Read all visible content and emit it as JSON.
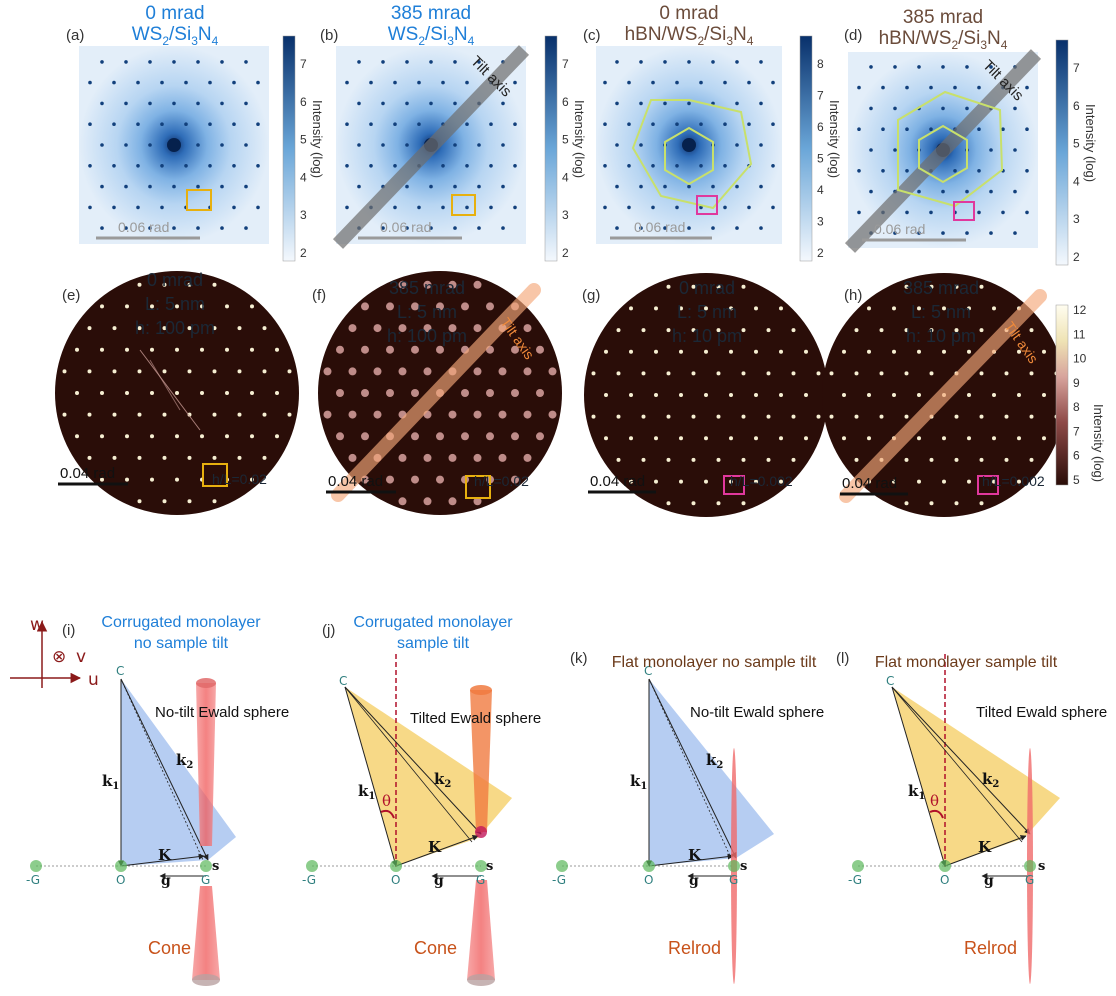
{
  "panels_top": [
    {
      "letter": "(a)",
      "tilt": "0 mrad",
      "sample_parts": [
        "WS",
        "2",
        "/Si",
        "3",
        "N",
        "4"
      ],
      "scale": "0.06 rad",
      "colorbar_label": "Intensity (log)",
      "ticks": [
        "7",
        "6",
        "5",
        "4",
        "3",
        "2"
      ],
      "title_color": "#1f7fd8"
    },
    {
      "letter": "(b)",
      "tilt": "385 mrad",
      "sample_parts": [
        "WS",
        "2",
        "/Si",
        "3",
        "N",
        "4"
      ],
      "scale": "0.06 rad",
      "tilt_axis": "Tilt axis",
      "colorbar_label": "Intensity (log)",
      "ticks": [
        "7",
        "6",
        "5",
        "4",
        "3",
        "2"
      ],
      "title_color": "#1f7fd8"
    },
    {
      "letter": "(c)",
      "tilt": "0 mrad",
      "sample_parts": [
        "hBN/WS",
        "2",
        "/Si",
        "3",
        "N",
        "4"
      ],
      "scale": "0.06 rad",
      "colorbar_label": "Intensity (log)",
      "ticks": [
        "8",
        "7",
        "6",
        "5",
        "4",
        "3",
        "2"
      ],
      "title_color": "#6b4c3b"
    },
    {
      "letter": "(d)",
      "tilt": "385 mrad",
      "sample_parts": [
        "hBN/WS",
        "2",
        "/Si",
        "3",
        "N",
        "4"
      ],
      "scale": "0.06 rad",
      "tilt_axis": "Tilt axis",
      "colorbar_label": "Intensity (log)",
      "ticks": [
        "7",
        "6",
        "5",
        "4",
        "3",
        "2"
      ],
      "title_color": "#6b4c3b"
    }
  ],
  "panels_sim": [
    {
      "letter": "(e)",
      "tilt": "0 mrad",
      "L": "L: 5 nm",
      "h": "h: 100 pm",
      "ratio": "h/L=0.02",
      "scale": "0.04 rad"
    },
    {
      "letter": "(f)",
      "tilt": "385 mrad",
      "L": "L: 5 nm",
      "h": "h: 100 pm",
      "ratio": "h/L=0.02",
      "scale": "0.04 rad",
      "tilt_axis": "Tilt axis"
    },
    {
      "letter": "(g)",
      "tilt": "0 mrad",
      "L": "L: 5 nm",
      "h": "h: 10 pm",
      "ratio": "h/L=0.002",
      "scale": "0.04 rad"
    },
    {
      "letter": "(h)",
      "tilt": "385 mrad",
      "L": "L: 5 nm",
      "h": "h: 10 pm",
      "ratio": "h/L=0.002",
      "scale": "0.04 rad",
      "tilt_axis": "Tilt axis"
    }
  ],
  "sim_colorbar": {
    "label": "Intensity (log)",
    "ticks": [
      "12",
      "11",
      "10",
      "9",
      "8",
      "7",
      "6",
      "5"
    ]
  },
  "panels_diag": [
    {
      "letter": "(i)",
      "title_lines": [
        "Corrugated monolayer",
        "no sample tilt"
      ],
      "title_color": "#1f7fd8",
      "sphere": "No-tilt Ewald sphere",
      "shape": "Cone"
    },
    {
      "letter": "(j)",
      "title_lines": [
        "Corrugated monolayer",
        "sample tilt"
      ],
      "title_color": "#1f7fd8",
      "sphere": "Tilted Ewald sphere",
      "shape": "Cone"
    },
    {
      "letter": "(k)",
      "title_lines": [
        "Flat monolayer no sample tilt"
      ],
      "title_color": "#6b3a1a",
      "sphere": "No-tilt Ewald sphere",
      "shape": "Relrod"
    },
    {
      "letter": "(l)",
      "title_lines": [
        "Flat monolayer sample tilt"
      ],
      "title_color": "#6b3a1a",
      "sphere": "Tilted Ewald sphere",
      "shape": "Relrod"
    }
  ],
  "diag_labels": {
    "C": "C",
    "k1": "k",
    "k1_sub": "1",
    "k2": "k",
    "k2_sub": "2",
    "K": "K",
    "s": "s",
    "g": "g",
    "O": "O",
    "G": "G",
    "negG": "-G",
    "theta": "θ"
  },
  "axes": {
    "w": "w",
    "v": "v",
    "u": "u",
    "v_symbol": "⊗"
  },
  "colors": {
    "ewald_blue": "#a9c4f0",
    "ewald_yellow": "#f6d57a",
    "cone": "#f06a6a",
    "box_yellow": "#e7b00f",
    "box_pink": "#e0389d",
    "tilt_axis_orange": "#f5a87a",
    "dark_red": "#8b1a1a",
    "spot_green": "#5bb85b"
  }
}
